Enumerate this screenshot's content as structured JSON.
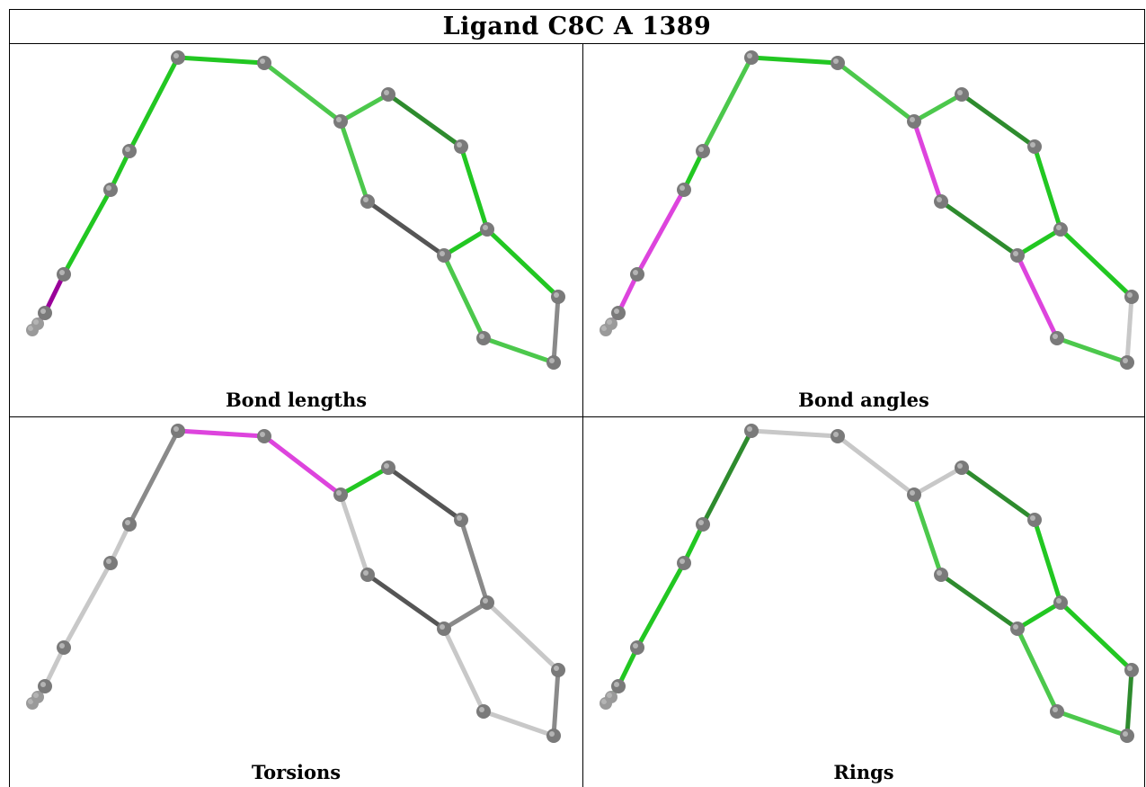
{
  "title": "Ligand C8C A 1389",
  "panels": [
    {
      "id": "bond-lengths",
      "caption": "Bond lengths"
    },
    {
      "id": "bond-angles",
      "caption": "Bond angles"
    },
    {
      "id": "torsions",
      "caption": "Torsions"
    },
    {
      "id": "rings",
      "caption": "Rings"
    }
  ],
  "colors": {
    "green": "#22c722",
    "light_green": "#4cc84c",
    "dark_green": "#2e8b2e",
    "magenta": "#dd44dd",
    "purple": "#990099",
    "light_gray": "#c8c8c8",
    "gray": "#8a8a8a",
    "dark_gray": "#555555",
    "atom": "#7a7a7a"
  }
}
